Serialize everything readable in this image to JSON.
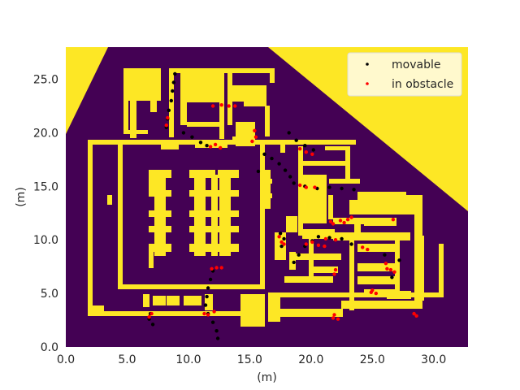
{
  "chart_data": {
    "type": "scatter",
    "title": "",
    "xlabel": "(m)",
    "ylabel": "(m)",
    "xlim": [
      0,
      32.8
    ],
    "ylim": [
      0,
      28.0
    ],
    "xticks": [
      "0.0",
      "5.0",
      "10.0",
      "15.0",
      "20.0",
      "25.0",
      "30.0"
    ],
    "yticks": [
      "0.0",
      "5.0",
      "10.0",
      "15.0",
      "20.0",
      "25.0"
    ],
    "grid": false,
    "legend_position": "upper right",
    "background_map": {
      "kind": "occupancy-grid",
      "free_color": "#440154",
      "obstacle_color": "#fde725"
    },
    "series": [
      {
        "name": "movable",
        "color": "#000000",
        "points": [
          [
            8.9,
            25.5
          ],
          [
            8.8,
            24.7
          ],
          [
            8.7,
            23.9
          ],
          [
            8.6,
            23.0
          ],
          [
            8.4,
            22.1
          ],
          [
            8.3,
            21.3
          ],
          [
            8.2,
            20.5
          ],
          [
            9.6,
            20.0
          ],
          [
            10.3,
            19.6
          ],
          [
            11.0,
            19.1
          ],
          [
            11.5,
            18.8
          ],
          [
            12.0,
            7.1
          ],
          [
            11.8,
            6.3
          ],
          [
            11.6,
            5.5
          ],
          [
            11.5,
            4.7
          ],
          [
            11.4,
            3.9
          ],
          [
            11.6,
            3.1
          ],
          [
            12.0,
            2.3
          ],
          [
            12.3,
            1.5
          ],
          [
            12.4,
            0.8
          ],
          [
            6.9,
            3.1
          ],
          [
            6.8,
            2.6
          ],
          [
            7.1,
            2.1
          ],
          [
            17.5,
            10.6
          ],
          [
            17.8,
            10.1
          ],
          [
            17.6,
            9.4
          ],
          [
            16.2,
            18.0
          ],
          [
            16.8,
            17.6
          ],
          [
            17.4,
            17.1
          ],
          [
            17.9,
            16.5
          ],
          [
            18.3,
            15.9
          ],
          [
            18.6,
            15.3
          ],
          [
            18.2,
            20.0
          ],
          [
            18.8,
            19.3
          ],
          [
            19.5,
            18.8
          ],
          [
            20.2,
            18.4
          ],
          [
            19.5,
            15.0
          ],
          [
            20.5,
            14.8
          ],
          [
            21.5,
            14.9
          ],
          [
            22.5,
            14.8
          ],
          [
            23.5,
            14.7
          ],
          [
            18.6,
            7.9
          ],
          [
            19.0,
            8.6
          ],
          [
            19.5,
            9.4
          ],
          [
            20.1,
            9.9
          ],
          [
            20.6,
            10.3
          ],
          [
            21.5,
            10.2
          ],
          [
            22.5,
            10.1
          ],
          [
            23.3,
            9.6
          ],
          [
            15.7,
            16.4
          ],
          [
            26.0,
            8.6
          ],
          [
            26.6,
            6.5
          ],
          [
            27.2,
            8.1
          ]
        ]
      },
      {
        "name": "in obstacle",
        "color": "#ff0000",
        "points": [
          [
            12.0,
            22.5
          ],
          [
            12.7,
            22.6
          ],
          [
            13.3,
            22.5
          ],
          [
            13.8,
            22.5
          ],
          [
            8.3,
            21.4
          ],
          [
            8.2,
            20.7
          ],
          [
            15.4,
            20.2
          ],
          [
            15.5,
            19.6
          ],
          [
            15.2,
            19.2
          ],
          [
            12.2,
            18.9
          ],
          [
            12.6,
            18.6
          ],
          [
            11.8,
            18.7
          ],
          [
            19.1,
            18.5
          ],
          [
            19.6,
            18.2
          ],
          [
            20.1,
            18.0
          ],
          [
            19.1,
            15.1
          ],
          [
            19.6,
            14.9
          ],
          [
            20.3,
            14.9
          ],
          [
            11.9,
            7.3
          ],
          [
            12.3,
            7.4
          ],
          [
            12.7,
            7.4
          ],
          [
            17.4,
            10.3
          ],
          [
            17.6,
            9.8
          ],
          [
            17.8,
            9.6
          ],
          [
            19.6,
            9.6
          ],
          [
            20.1,
            9.8
          ],
          [
            21.2,
            10.1
          ],
          [
            22.0,
            10.0
          ],
          [
            20.6,
            9.5
          ],
          [
            21.1,
            9.4
          ],
          [
            21.6,
            11.7
          ],
          [
            22.4,
            11.8
          ],
          [
            23.0,
            11.9
          ],
          [
            23.3,
            12.1
          ],
          [
            24.2,
            9.3
          ],
          [
            24.6,
            9.1
          ],
          [
            26.1,
            7.8
          ],
          [
            26.5,
            7.2
          ],
          [
            26.8,
            7.0
          ],
          [
            26.2,
            7.3
          ],
          [
            25.0,
            5.3
          ],
          [
            25.3,
            5.0
          ],
          [
            24.9,
            5.1
          ],
          [
            22.0,
            7.2
          ],
          [
            21.9,
            6.8
          ],
          [
            21.9,
            3.0
          ],
          [
            22.2,
            2.6
          ],
          [
            21.8,
            2.7
          ],
          [
            7.0,
            3.1
          ],
          [
            6.8,
            2.8
          ],
          [
            11.6,
            3.0
          ],
          [
            12.1,
            3.3
          ],
          [
            11.3,
            3.1
          ],
          [
            26.7,
            11.9
          ],
          [
            28.4,
            3.1
          ],
          [
            28.6,
            2.9
          ],
          [
            22.7,
            11.6
          ],
          [
            21.8,
            11.5
          ]
        ]
      }
    ]
  }
}
